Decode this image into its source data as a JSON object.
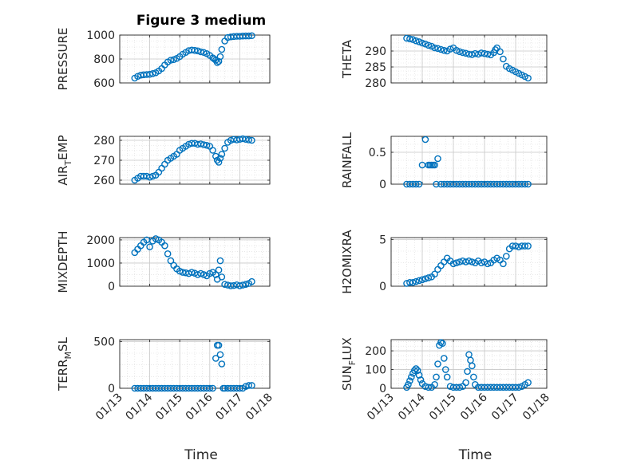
{
  "figure": {
    "title": "Figure 3 medium",
    "accent_color": "#0072BD",
    "grid_color": "#d9d9d9",
    "axis_color": "#262626"
  },
  "chart_data": [
    {
      "type": "scatter",
      "ylabel": "PRESSURE",
      "xlim": [
        "01/13",
        "01/18"
      ],
      "ylim": [
        600,
        1000
      ],
      "yticks": [
        600,
        800,
        1000
      ],
      "grid": true,
      "x": [
        13.5,
        13.6,
        13.7,
        13.8,
        13.9,
        14.0,
        14.1,
        14.2,
        14.3,
        14.4,
        14.5,
        14.6,
        14.7,
        14.8,
        14.9,
        15.0,
        15.1,
        15.2,
        15.3,
        15.4,
        15.5,
        15.6,
        15.7,
        15.8,
        15.9,
        16.0,
        16.1,
        16.15,
        16.2,
        16.25,
        16.3,
        16.35,
        16.4,
        16.5,
        16.6,
        16.7,
        16.8,
        16.9,
        17.0,
        17.1,
        17.2,
        17.3,
        17.4
      ],
      "values": [
        640,
        655,
        665,
        668,
        670,
        672,
        678,
        685,
        700,
        720,
        750,
        775,
        790,
        795,
        805,
        820,
        840,
        855,
        870,
        875,
        872,
        868,
        860,
        855,
        845,
        830,
        810,
        800,
        790,
        770,
        780,
        820,
        880,
        950,
        980,
        985,
        988,
        990,
        990,
        992,
        993,
        993,
        995
      ]
    },
    {
      "type": "scatter",
      "ylabel": "THETA",
      "xlim": [
        "01/13",
        "01/18"
      ],
      "ylim": [
        280,
        295
      ],
      "yticks": [
        280,
        285,
        290
      ],
      "grid": true,
      "x": [
        13.5,
        13.6,
        13.7,
        13.8,
        13.9,
        14.0,
        14.1,
        14.2,
        14.3,
        14.4,
        14.5,
        14.6,
        14.7,
        14.8,
        14.9,
        15.0,
        15.1,
        15.2,
        15.3,
        15.4,
        15.5,
        15.6,
        15.7,
        15.8,
        15.9,
        16.0,
        16.1,
        16.2,
        16.3,
        16.35,
        16.4,
        16.5,
        16.6,
        16.7,
        16.8,
        16.9,
        17.0,
        17.1,
        17.2,
        17.3,
        17.4
      ],
      "values": [
        294,
        293.8,
        293.6,
        293.2,
        292.9,
        292.5,
        292.2,
        291.8,
        291.5,
        291.0,
        290.8,
        290.5,
        290.2,
        290.0,
        290.6,
        291.0,
        290.2,
        289.8,
        289.5,
        289.3,
        289.0,
        288.9,
        289.2,
        289.0,
        289.4,
        289.2,
        289.0,
        288.8,
        289.5,
        290.4,
        291.0,
        289.8,
        287.5,
        285.2,
        284.5,
        284.0,
        283.5,
        283.0,
        282.5,
        282.0,
        281.5
      ]
    },
    {
      "type": "scatter",
      "ylabel": "AIR_TEMP",
      "ylabel_parts": [
        "AIR",
        "T",
        "EMP"
      ],
      "xlim": [
        "01/13",
        "01/18"
      ],
      "ylim": [
        258,
        282
      ],
      "yticks": [
        260,
        270,
        280
      ],
      "grid": true,
      "x": [
        13.5,
        13.6,
        13.7,
        13.8,
        13.9,
        14.0,
        14.1,
        14.2,
        14.3,
        14.4,
        14.5,
        14.6,
        14.7,
        14.8,
        14.9,
        15.0,
        15.1,
        15.2,
        15.3,
        15.4,
        15.5,
        15.6,
        15.7,
        15.8,
        15.9,
        16.0,
        16.1,
        16.2,
        16.25,
        16.3,
        16.35,
        16.4,
        16.5,
        16.6,
        16.7,
        16.8,
        16.9,
        17.0,
        17.1,
        17.2,
        17.3,
        17.4
      ],
      "values": [
        260,
        261,
        262,
        262,
        262,
        261.5,
        262,
        262.5,
        264,
        266,
        268,
        270,
        271,
        272,
        273,
        275,
        276,
        277,
        278,
        278.5,
        278.5,
        278,
        278.2,
        277.8,
        277.5,
        277,
        275,
        272,
        270,
        269,
        271,
        273,
        276,
        279,
        280,
        280.5,
        280.2,
        280.5,
        280.8,
        280.5,
        280.2,
        280
      ]
    },
    {
      "type": "scatter",
      "ylabel": "RAINFALL",
      "xlim": [
        "01/13",
        "01/18"
      ],
      "ylim": [
        0,
        0.75
      ],
      "yticks": [
        0,
        0.5
      ],
      "grid": true,
      "x": [
        13.5,
        13.6,
        13.7,
        13.8,
        13.9,
        14.0,
        14.1,
        14.2,
        14.25,
        14.3,
        14.35,
        14.4,
        14.45,
        14.5,
        14.6,
        14.7,
        14.8,
        14.9,
        15.0,
        15.1,
        15.2,
        15.3,
        15.4,
        15.5,
        15.6,
        15.7,
        15.8,
        15.9,
        16.0,
        16.1,
        16.2,
        16.3,
        16.4,
        16.5,
        16.6,
        16.7,
        16.8,
        16.9,
        17.0,
        17.1,
        17.2,
        17.3,
        17.4
      ],
      "values": [
        0,
        0,
        0,
        0,
        0,
        0.3,
        0.7,
        0.3,
        0.3,
        0.3,
        0.3,
        0.3,
        0,
        0.4,
        0,
        0,
        0,
        0,
        0,
        0,
        0,
        0,
        0,
        0,
        0,
        0,
        0,
        0,
        0,
        0,
        0,
        0,
        0,
        0,
        0,
        0,
        0,
        0,
        0,
        0,
        0,
        0,
        0
      ]
    },
    {
      "type": "scatter",
      "ylabel": "MIXDEPTH",
      "xlim": [
        "01/13",
        "01/18"
      ],
      "ylim": [
        0,
        2100
      ],
      "yticks": [
        0,
        1000,
        2000
      ],
      "grid": true,
      "x": [
        13.5,
        13.6,
        13.7,
        13.8,
        13.9,
        14.0,
        14.1,
        14.2,
        14.3,
        14.4,
        14.5,
        14.6,
        14.7,
        14.8,
        14.9,
        15.0,
        15.1,
        15.2,
        15.3,
        15.4,
        15.5,
        15.6,
        15.7,
        15.8,
        15.9,
        16.0,
        16.1,
        16.2,
        16.25,
        16.3,
        16.35,
        16.4,
        16.5,
        16.6,
        16.7,
        16.8,
        16.9,
        17.0,
        17.1,
        17.2,
        17.3,
        17.4
      ],
      "values": [
        1450,
        1600,
        1750,
        1900,
        2000,
        1700,
        1950,
        2050,
        2000,
        1900,
        1750,
        1400,
        1100,
        900,
        750,
        650,
        600,
        580,
        550,
        600,
        560,
        500,
        550,
        500,
        450,
        550,
        600,
        500,
        300,
        700,
        1100,
        400,
        80,
        50,
        20,
        30,
        60,
        20,
        50,
        80,
        120,
        200
      ]
    },
    {
      "type": "scatter",
      "ylabel": "H2OMIXRA",
      "xlim": [
        "01/13",
        "01/18"
      ],
      "ylim": [
        0,
        5.2
      ],
      "yticks": [
        0,
        5
      ],
      "grid": true,
      "x": [
        13.5,
        13.6,
        13.7,
        13.8,
        13.9,
        14.0,
        14.1,
        14.2,
        14.3,
        14.4,
        14.5,
        14.6,
        14.7,
        14.8,
        14.9,
        15.0,
        15.1,
        15.2,
        15.3,
        15.4,
        15.5,
        15.6,
        15.7,
        15.8,
        15.9,
        16.0,
        16.1,
        16.2,
        16.3,
        16.4,
        16.5,
        16.6,
        16.7,
        16.8,
        16.9,
        17.0,
        17.1,
        17.2,
        17.3,
        17.4
      ],
      "values": [
        0.3,
        0.4,
        0.4,
        0.5,
        0.6,
        0.7,
        0.8,
        0.9,
        1.0,
        1.3,
        1.8,
        2.2,
        2.6,
        3.0,
        2.7,
        2.4,
        2.5,
        2.6,
        2.7,
        2.6,
        2.7,
        2.6,
        2.5,
        2.7,
        2.5,
        2.6,
        2.4,
        2.5,
        2.8,
        3.0,
        2.8,
        2.4,
        3.2,
        4.0,
        4.3,
        4.3,
        4.2,
        4.3,
        4.3,
        4.3
      ]
    },
    {
      "type": "scatter",
      "ylabel": "TERR_MSL",
      "ylabel_parts": [
        "TERR",
        "M",
        "SL"
      ],
      "xlim": [
        "01/13",
        "01/18"
      ],
      "ylim": [
        0,
        520
      ],
      "yticks": [
        0,
        500
      ],
      "grid": true,
      "x": [
        13.5,
        13.6,
        13.7,
        13.8,
        13.9,
        14.0,
        14.1,
        14.2,
        14.3,
        14.4,
        14.5,
        14.6,
        14.7,
        14.8,
        14.9,
        15.0,
        15.1,
        15.2,
        15.3,
        15.4,
        15.5,
        15.6,
        15.7,
        15.8,
        15.9,
        16.0,
        16.1,
        16.2,
        16.25,
        16.3,
        16.35,
        16.4,
        16.45,
        16.5,
        16.6,
        16.7,
        16.8,
        16.9,
        17.0,
        17.1,
        17.2,
        17.3,
        17.4
      ],
      "values": [
        0,
        0,
        0,
        0,
        0,
        0,
        0,
        0,
        0,
        0,
        0,
        0,
        0,
        0,
        0,
        0,
        0,
        0,
        0,
        0,
        0,
        0,
        0,
        0,
        0,
        0,
        0,
        320,
        460,
        460,
        360,
        260,
        0,
        0,
        0,
        0,
        0,
        0,
        0,
        0,
        20,
        30,
        30
      ]
    },
    {
      "type": "scatter",
      "ylabel": "SUN_FLUX",
      "ylabel_parts": [
        "SUN",
        "F",
        "LUX"
      ],
      "xlim": [
        "01/13",
        "01/18"
      ],
      "ylim": [
        0,
        260
      ],
      "yticks": [
        0,
        100,
        200
      ],
      "grid": true,
      "x": [
        13.5,
        13.55,
        13.6,
        13.65,
        13.7,
        13.75,
        13.8,
        13.85,
        13.9,
        13.95,
        14.0,
        14.1,
        14.2,
        14.3,
        14.4,
        14.45,
        14.5,
        14.55,
        14.6,
        14.65,
        14.7,
        14.75,
        14.8,
        14.9,
        15.0,
        15.1,
        15.2,
        15.3,
        15.4,
        15.45,
        15.5,
        15.55,
        15.6,
        15.65,
        15.7,
        15.8,
        15.9,
        16.0,
        16.1,
        16.2,
        16.3,
        16.4,
        16.5,
        16.6,
        16.7,
        16.8,
        16.9,
        17.0,
        17.1,
        17.2,
        17.3,
        17.4
      ],
      "values": [
        5,
        20,
        40,
        60,
        80,
        95,
        105,
        95,
        70,
        45,
        25,
        10,
        5,
        5,
        20,
        60,
        130,
        230,
        245,
        240,
        160,
        100,
        60,
        10,
        5,
        5,
        5,
        10,
        30,
        90,
        180,
        150,
        120,
        60,
        20,
        5,
        5,
        5,
        5,
        5,
        5,
        5,
        5,
        5,
        5,
        5,
        5,
        5,
        5,
        10,
        20,
        30
      ]
    }
  ],
  "shared_x": {
    "xlabel": "Time",
    "ticks": [
      "01/13",
      "01/14",
      "01/15",
      "01/16",
      "01/17",
      "01/18"
    ],
    "tick_values": [
      13,
      14,
      15,
      16,
      17,
      18
    ]
  }
}
